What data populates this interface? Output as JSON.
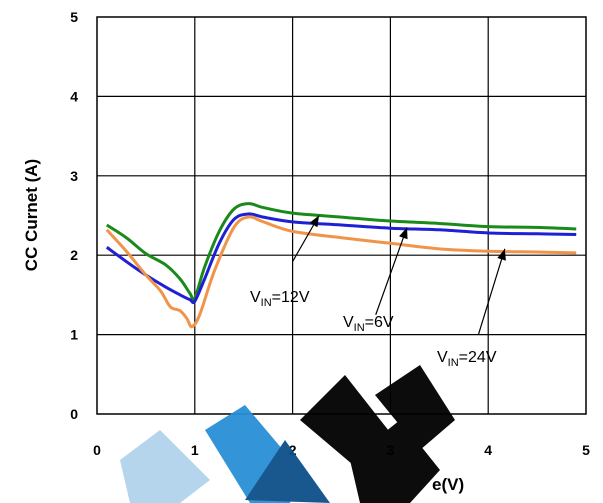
{
  "chart_data": {
    "type": "line",
    "title": "",
    "ylabel": "CC Curnet (A)",
    "xlabel_visible": "e(V)",
    "xlim": [
      0,
      5
    ],
    "ylim": [
      0,
      5
    ],
    "xticks": [
      "0",
      "1",
      "2",
      "3",
      "4",
      "5"
    ],
    "yticks": [
      "0",
      "1",
      "2",
      "3",
      "4",
      "5"
    ],
    "grid": true,
    "series": [
      {
        "name": "VIN=12V",
        "color": "#1a8a1a",
        "x": [
          0.1,
          0.3,
          0.5,
          0.7,
          0.85,
          0.95,
          1.0,
          1.1,
          1.25,
          1.4,
          1.55,
          1.7,
          2.0,
          2.5,
          3.0,
          3.5,
          4.0,
          4.5,
          4.9
        ],
        "y": [
          2.38,
          2.22,
          2.02,
          1.88,
          1.7,
          1.52,
          1.46,
          1.85,
          2.3,
          2.58,
          2.65,
          2.6,
          2.53,
          2.48,
          2.43,
          2.4,
          2.36,
          2.35,
          2.33
        ]
      },
      {
        "name": "VIN=6V",
        "color": "#1f1fd6",
        "x": [
          0.1,
          0.3,
          0.5,
          0.7,
          0.85,
          0.95,
          1.0,
          1.1,
          1.25,
          1.4,
          1.55,
          1.7,
          2.0,
          2.5,
          3.0,
          3.5,
          4.0,
          4.5,
          4.9
        ],
        "y": [
          2.1,
          1.92,
          1.75,
          1.6,
          1.5,
          1.44,
          1.42,
          1.7,
          2.15,
          2.45,
          2.52,
          2.48,
          2.42,
          2.38,
          2.34,
          2.32,
          2.28,
          2.27,
          2.26
        ]
      },
      {
        "name": "VIN=24V",
        "color": "#f0944a",
        "x": [
          0.1,
          0.3,
          0.5,
          0.65,
          0.75,
          0.85,
          0.92,
          0.97,
          1.05,
          1.2,
          1.4,
          1.55,
          1.7,
          2.0,
          2.5,
          3.0,
          3.5,
          4.0,
          4.5,
          4.9
        ],
        "y": [
          2.32,
          2.05,
          1.75,
          1.55,
          1.35,
          1.3,
          1.2,
          1.1,
          1.25,
          1.8,
          2.35,
          2.48,
          2.42,
          2.3,
          2.22,
          2.15,
          2.08,
          2.05,
          2.04,
          2.03
        ]
      }
    ],
    "annotations": [
      {
        "main": "V",
        "sub": "IN",
        "rest": "=12V",
        "tip": [
          2.27,
          2.5
        ],
        "tail": [
          2.0,
          1.92
        ]
      },
      {
        "main": "V",
        "sub": "IN",
        "rest": "=6V",
        "tip": [
          3.17,
          2.35
        ],
        "tail": [
          2.85,
          1.25
        ]
      },
      {
        "main": "V",
        "sub": "IN",
        "rest": "=24V",
        "tip": [
          4.17,
          2.08
        ],
        "tail": [
          3.9,
          1.0
        ]
      }
    ]
  }
}
